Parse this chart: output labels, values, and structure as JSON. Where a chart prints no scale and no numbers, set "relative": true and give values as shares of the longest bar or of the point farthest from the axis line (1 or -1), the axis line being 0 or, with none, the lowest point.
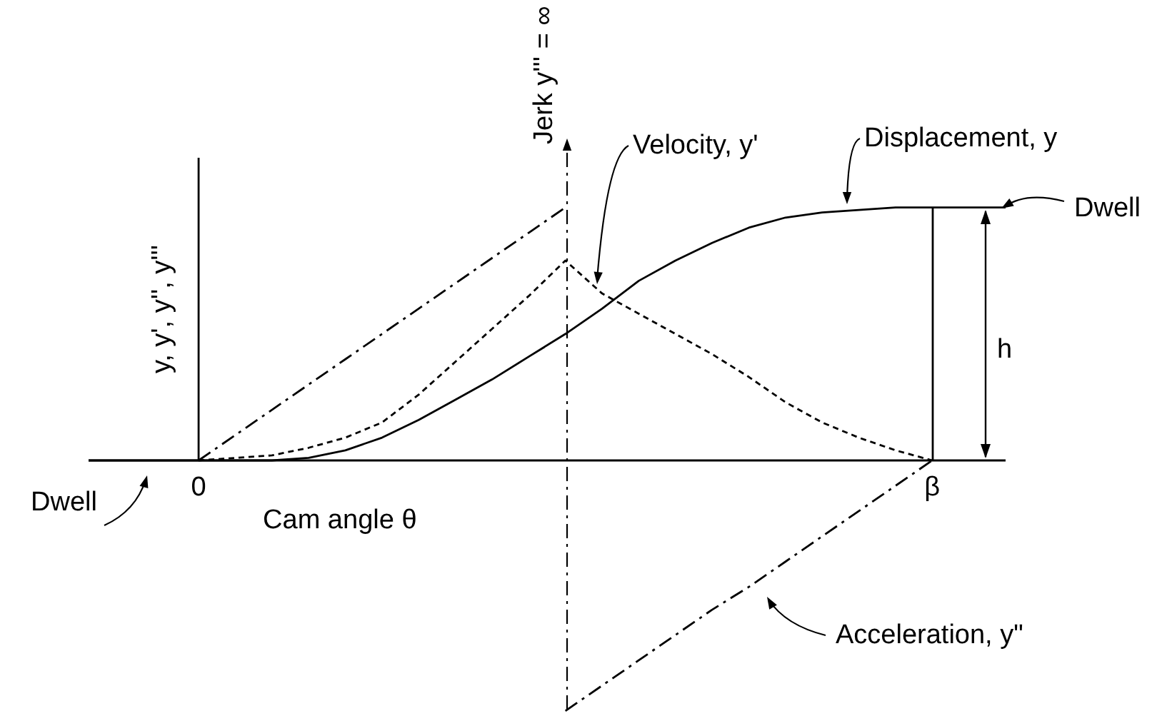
{
  "chart_data": {
    "type": "line",
    "relative": true,
    "xlabel": "Cam angle θ",
    "ylabel": "y, y', y'', y'''",
    "categories": [
      null,
      null,
      null,
      "0",
      null,
      null,
      null,
      null,
      null,
      null,
      null,
      null,
      null,
      null,
      null,
      null,
      null,
      null,
      null,
      null,
      null,
      null,
      null,
      "β",
      null,
      null
    ],
    "series": [
      {
        "color": "#000000",
        "line_style": "solid",
        "values": [
          0,
          0,
          0,
          0,
          0,
          0,
          0.01,
          0.04,
          0.09,
          0.16,
          0.24,
          0.32,
          0.41,
          0.5,
          0.6,
          0.71,
          0.79,
          0.86,
          0.92,
          0.96,
          0.98,
          0.99,
          1,
          1,
          1,
          1
        ]
      },
      {
        "color": "#000000",
        "line_style": "dotted",
        "values": [
          null,
          null,
          null,
          0,
          0.01,
          0.02,
          0.05,
          0.09,
          0.15,
          0.26,
          0.39,
          0.52,
          0.65,
          0.79,
          0.66,
          0.58,
          0.5,
          0.42,
          0.33,
          0.23,
          0.15,
          0.09,
          0.04,
          0,
          null,
          null
        ]
      },
      {
        "color": "#000000",
        "line_style": "dashed",
        "values": [
          null,
          null,
          null,
          0,
          0.1,
          0.2,
          0.3,
          0.4,
          0.5,
          0.6,
          0.7,
          0.8,
          0.9,
          1,
          null,
          null,
          null,
          null,
          null,
          null,
          null,
          null,
          null,
          null,
          null,
          null
        ]
      },
      {
        "color": "#000000",
        "line_style": "dashed",
        "values": [
          null,
          null,
          null,
          null,
          null,
          null,
          null,
          null,
          null,
          null,
          null,
          null,
          null,
          -0.99,
          -0.89,
          -0.79,
          -0.69,
          -0.59,
          -0.5,
          -0.4,
          -0.3,
          -0.2,
          -0.1,
          0,
          null,
          null
        ]
      }
    ],
    "annotations": [
      "Displacement, y",
      "Velocity, y'",
      "Acceleration, y\"",
      "Dwell",
      "Dwell",
      "h",
      "Jerk y''' = ∞"
    ]
  }
}
